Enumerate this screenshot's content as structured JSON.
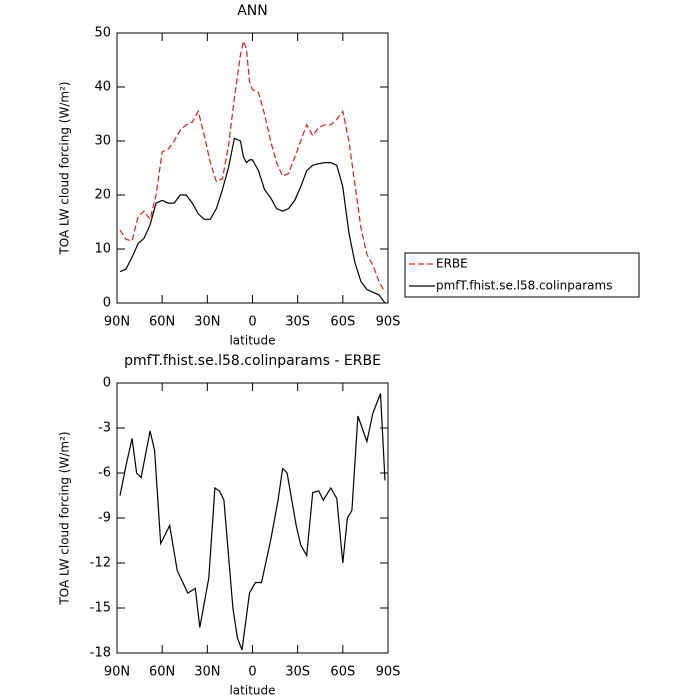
{
  "chart_data": [
    {
      "type": "line",
      "title": "ANN",
      "xlabel": "latitude",
      "ylabel": "TOA LW cloud forcing (W/m²)",
      "x": [
        88,
        84,
        80,
        76,
        72,
        68,
        64,
        60,
        56,
        52,
        48,
        44,
        40,
        36,
        32,
        28,
        24,
        20,
        16,
        12,
        8,
        6,
        4,
        2,
        0,
        -4,
        -8,
        -12,
        -16,
        -20,
        -24,
        -28,
        -32,
        -36,
        -40,
        -44,
        -48,
        -52,
        -56,
        -60,
        -64,
        -68,
        -72,
        -76,
        -80,
        -84,
        -88
      ],
      "series": [
        {
          "name": "ERBE",
          "color": "#e41a1c",
          "line_style": "dashed",
          "values": [
            13.5,
            11.8,
            11.5,
            16,
            17,
            15.5,
            20,
            28,
            28.5,
            30,
            32,
            33,
            33.5,
            35.5,
            31,
            26,
            22.5,
            23,
            29,
            38,
            46,
            48.5,
            47,
            41,
            39.5,
            39,
            35,
            30,
            26,
            23.5,
            24,
            27,
            30,
            33,
            31,
            32.5,
            33,
            33,
            34,
            35.5,
            30,
            22,
            14,
            9,
            7,
            4,
            2
          ]
        },
        {
          "name": "pmfT.fhist.se.l58.colinparams",
          "color": "#000000",
          "line_style": "solid",
          "values": [
            5.8,
            6.3,
            8.5,
            11,
            12,
            14.5,
            18.5,
            19,
            18.5,
            18.5,
            20,
            20,
            18.5,
            16.5,
            15.5,
            15.5,
            17.5,
            21,
            25,
            30.5,
            30,
            27,
            26,
            26.5,
            26.5,
            24.5,
            21,
            19.5,
            17.5,
            17,
            17.5,
            19,
            21.5,
            24.5,
            25.5,
            25.8,
            26,
            26,
            25.5,
            21.5,
            13,
            7.5,
            4,
            2.5,
            2,
            1.5,
            0
          ]
        }
      ],
      "xlim": [
        90,
        -90
      ],
      "xticks": [
        {
          "value": 90,
          "label": "90N"
        },
        {
          "value": 60,
          "label": "60N"
        },
        {
          "value": 30,
          "label": "30N"
        },
        0,
        {
          "value": -30,
          "label": "30S"
        },
        {
          "value": -60,
          "label": "60S"
        },
        {
          "value": -90,
          "label": "90S"
        }
      ],
      "ylim": [
        0,
        50
      ],
      "yticks": [
        0,
        10,
        20,
        30,
        40,
        50
      ],
      "legend": "right"
    },
    {
      "type": "line",
      "title": "pmfT.fhist.se.l58.colinparams - ERBE",
      "xlabel": "latitude",
      "ylabel": "TOA LW cloud forcing (W/m²)",
      "x": [
        88,
        84,
        80,
        77,
        74,
        68,
        65,
        61,
        55,
        50,
        43,
        38,
        35,
        29,
        25,
        22,
        19,
        13,
        10,
        7,
        2,
        -2,
        -6,
        -12,
        -17,
        -20,
        -23,
        -29,
        -32,
        -36,
        -40,
        -44,
        -47,
        -52,
        -56,
        -60,
        -63,
        -66,
        -70,
        -76,
        -80,
        -85,
        -88
      ],
      "series": [
        {
          "name": "pmfT.fhist.se.l58.colinparams - ERBE",
          "color": "#000000",
          "line_style": "solid",
          "values": [
            -7.5,
            -5.5,
            -3.7,
            -6,
            -6.3,
            -3.2,
            -4.5,
            -10.7,
            -9.5,
            -12.5,
            -14,
            -13.7,
            -16.3,
            -13,
            -7,
            -7.2,
            -7.8,
            -15,
            -17,
            -17.8,
            -14,
            -13.3,
            -13.3,
            -10.5,
            -7.8,
            -5.7,
            -6,
            -9.5,
            -10.8,
            -11.5,
            -7.3,
            -7.2,
            -7.8,
            -7,
            -7.7,
            -12,
            -9,
            -8.5,
            -2.2,
            -3.9,
            -2,
            -0.7,
            -6.5
          ]
        }
      ],
      "xlim": [
        90,
        -90
      ],
      "xticks": [
        {
          "value": 90,
          "label": "90N"
        },
        {
          "value": 60,
          "label": "60N"
        },
        {
          "value": 30,
          "label": "30N"
        },
        0,
        {
          "value": -30,
          "label": "30S"
        },
        {
          "value": -60,
          "label": "60S"
        },
        {
          "value": -90,
          "label": "90S"
        }
      ],
      "ylim": [
        -18,
        0
      ],
      "yticks": [
        -18,
        -15,
        -12,
        -9,
        -6,
        -3,
        0
      ]
    }
  ]
}
